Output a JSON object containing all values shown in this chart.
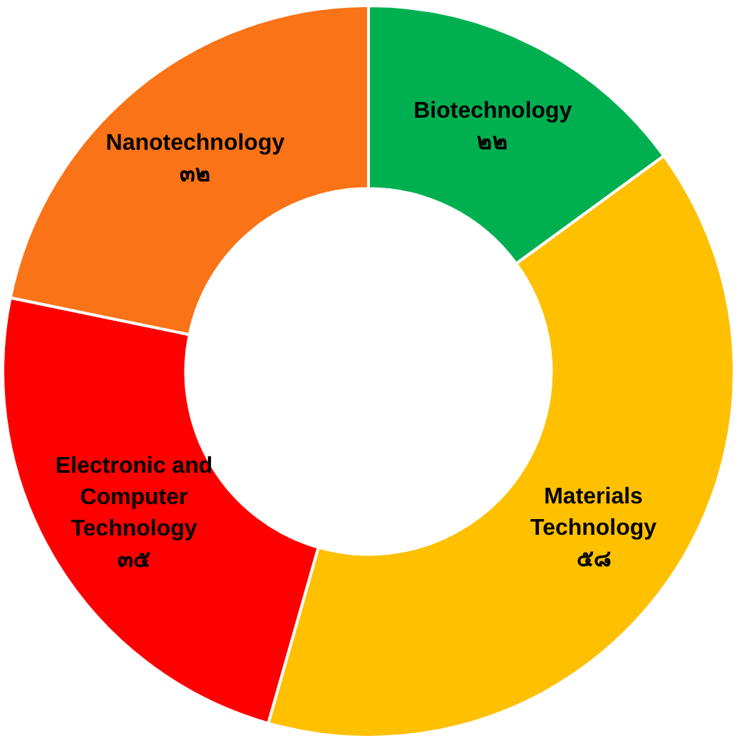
{
  "chart_data": {
    "type": "donut",
    "categories": [
      "Biotechnology",
      "Materials Technology",
      "Electronic and Computer Technology",
      "Nanotechnology"
    ],
    "values": [
      22,
      58,
      35,
      32
    ],
    "value_labels": [
      "๒๒",
      "๕๘",
      "๓๕",
      "๓๒"
    ],
    "colors": [
      "#00b050",
      "#ffc000",
      "#ff0000",
      "#fa7316"
    ],
    "legend": false
  }
}
